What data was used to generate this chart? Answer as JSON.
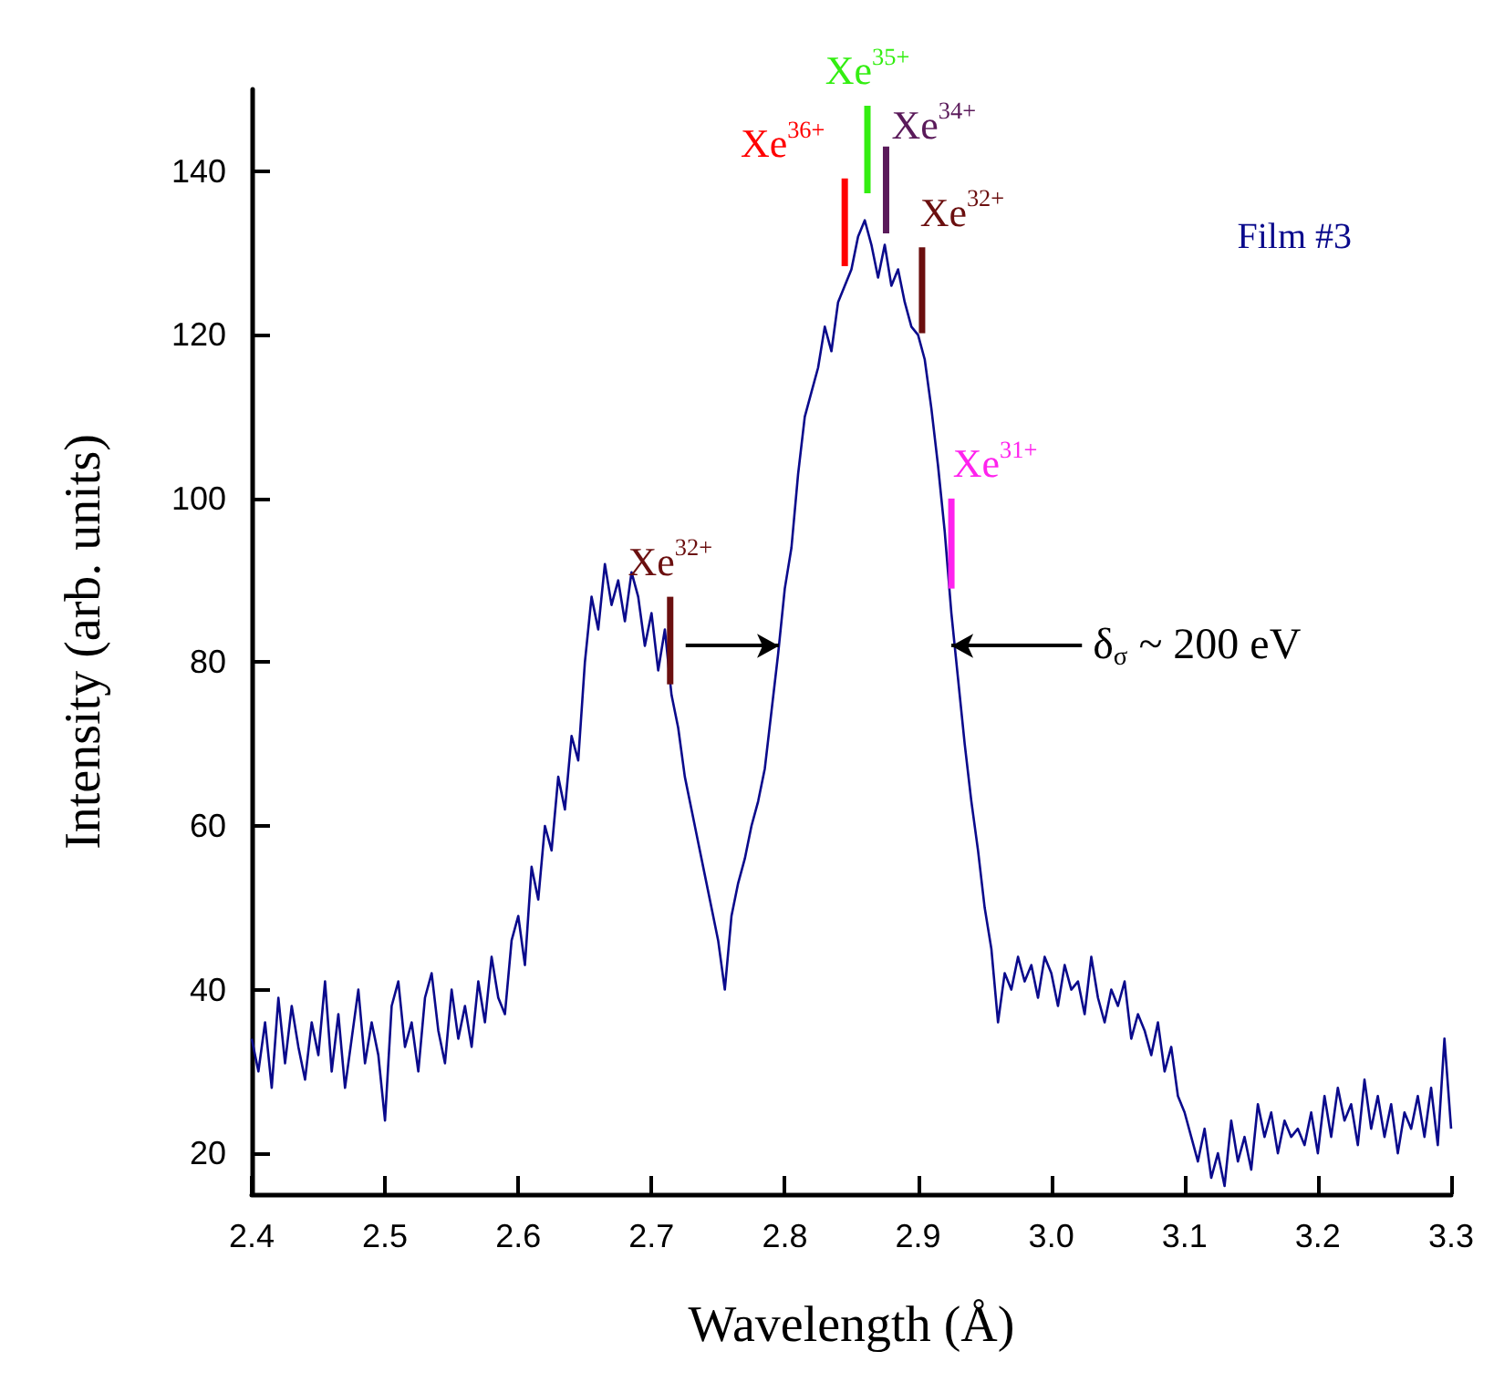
{
  "chart_data": {
    "type": "line",
    "xlabel": "Wavelength (Å)",
    "ylabel": "Intensity (arb. units)",
    "xlim": [
      2.4,
      3.3
    ],
    "ylim": [
      15,
      150
    ],
    "xticks": [
      2.4,
      2.5,
      2.6,
      2.7,
      2.8,
      2.9,
      {
        "value": 3,
        "label": "3.0"
      },
      3.1,
      3.2,
      3.3
    ],
    "yticks": [
      20,
      40,
      60,
      80,
      100,
      120,
      140
    ],
    "annotations": [
      "Film #3",
      {
        "text": "δ$_{σ}$ ~ 200 eV",
        "x": 2.925,
        "y": 82
      }
    ],
    "series": [
      {
        "color": "#0a0a8c",
        "x": [
          2.4,
          2.405,
          2.41,
          2.415,
          2.42,
          2.425,
          2.43,
          2.435,
          2.44,
          2.445,
          2.45,
          2.455,
          2.46,
          2.465,
          2.47,
          2.475,
          2.48,
          2.485,
          2.49,
          2.495,
          2.5,
          2.505,
          2.51,
          2.515,
          2.52,
          2.525,
          2.53,
          2.535,
          2.54,
          2.545,
          2.55,
          2.555,
          2.56,
          2.565,
          2.57,
          2.575,
          2.58,
          2.585,
          2.59,
          2.595,
          2.6,
          2.605,
          2.61,
          2.615,
          2.62,
          2.625,
          2.63,
          2.635,
          2.64,
          2.645,
          2.65,
          2.655,
          2.66,
          2.665,
          2.67,
          2.675,
          2.68,
          2.685,
          2.69,
          2.695,
          2.7,
          2.705,
          2.71,
          2.715,
          2.72,
          2.725,
          2.73,
          2.735,
          2.74,
          2.745,
          2.75,
          2.755,
          2.76,
          2.765,
          2.77,
          2.775,
          2.78,
          2.785,
          2.79,
          2.795,
          2.8,
          2.805,
          2.81,
          2.815,
          2.82,
          2.825,
          2.83,
          2.835,
          2.84,
          2.845,
          2.85,
          2.855,
          2.86,
          2.865,
          2.87,
          2.875,
          2.88,
          2.885,
          2.89,
          2.895,
          2.9,
          2.905,
          2.91,
          2.915,
          2.92,
          2.925,
          2.93,
          2.935,
          2.94,
          2.945,
          2.95,
          2.955,
          2.96,
          2.965,
          2.97,
          2.975,
          2.98,
          2.985,
          2.99,
          2.995,
          3,
          3.005,
          3.01,
          3.015,
          3.02,
          3.025,
          3.03,
          3.035,
          3.04,
          3.045,
          3.05,
          3.055,
          3.06,
          3.065,
          3.07,
          3.075,
          3.08,
          3.085,
          3.09,
          3.095,
          3.1,
          3.105,
          3.11,
          3.115,
          3.12,
          3.125,
          3.13,
          3.135,
          3.14,
          3.145,
          3.15,
          3.155,
          3.16,
          3.165,
          3.17,
          3.175,
          3.18,
          3.185,
          3.19,
          3.195,
          3.2,
          3.205,
          3.21,
          3.215,
          3.22,
          3.225,
          3.23,
          3.235,
          3.24,
          3.245,
          3.25,
          3.255,
          3.26,
          3.265,
          3.27,
          3.275,
          3.28,
          3.285,
          3.29,
          3.295,
          3.3
        ],
        "values": [
          34,
          30,
          36,
          28,
          39,
          31,
          38,
          33,
          29,
          36,
          32,
          41,
          30,
          37,
          28,
          34,
          40,
          31,
          36,
          32,
          24,
          38,
          41,
          33,
          36,
          30,
          39,
          42,
          35,
          31,
          40,
          34,
          38,
          33,
          41,
          36,
          44,
          39,
          37,
          46,
          49,
          43,
          55,
          51,
          60,
          57,
          66,
          62,
          71,
          68,
          80,
          88,
          84,
          92,
          87,
          90,
          85,
          91,
          88,
          82,
          86,
          79,
          84,
          76,
          72,
          66,
          62,
          58,
          54,
          50,
          46,
          40,
          49,
          53,
          56,
          60,
          63,
          67,
          74,
          81,
          89,
          94,
          103,
          110,
          113,
          116,
          121,
          118,
          124,
          126,
          128,
          132,
          134,
          131,
          127,
          131,
          126,
          128,
          124,
          121,
          120,
          117,
          111,
          104,
          96,
          86,
          78,
          70,
          63,
          57,
          50,
          45,
          36,
          42,
          40,
          44,
          41,
          43,
          39,
          44,
          42,
          38,
          43,
          40,
          41,
          37,
          44,
          39,
          36,
          40,
          38,
          41,
          34,
          37,
          35,
          32,
          36,
          30,
          33,
          27,
          25,
          22,
          19,
          23,
          17,
          20,
          16,
          24,
          19,
          22,
          18,
          26,
          22,
          25,
          20,
          24,
          22,
          23,
          21,
          25,
          20,
          27,
          22,
          28,
          24,
          26,
          21,
          29,
          23,
          27,
          22,
          26,
          20,
          25,
          23,
          27,
          22,
          28,
          21,
          34,
          23
        ]
      },
      {
        "type": "line",
        "name": "Xe$^{36+}$",
        "color": "#ff0000",
        "x": [
          2.845,
          2.845
        ],
        "values": [
          128.4,
          139.1
        ]
      },
      {
        "type": "line",
        "name": "Xe$^{35+}$",
        "color": "#33ee11",
        "x": [
          2.862,
          2.862
        ],
        "values": [
          137.3,
          148
        ]
      },
      {
        "type": "line",
        "name": "Xe$^{34+}$",
        "color": "#5a1a5a",
        "x": [
          2.876,
          2.876
        ],
        "values": [
          132.4,
          143
        ]
      },
      {
        "type": "line",
        "name": "Xe$^{32+}$",
        "color": "#6b0f0f",
        "x": [
          2.903,
          2.903
        ],
        "values": [
          120.2,
          130.7
        ]
      },
      {
        "type": "line",
        "name": "Xe$^{31+}$",
        "color": "#ff22ee",
        "x": [
          2.925,
          2.925
        ],
        "values": [
          89,
          100
        ]
      },
      {
        "type": "line",
        "name": "Xe$^{32+}$",
        "color": "#6b0f0f",
        "x": [
          2.714,
          2.714
        ],
        "values": [
          77.3,
          88
        ]
      }
    ]
  }
}
